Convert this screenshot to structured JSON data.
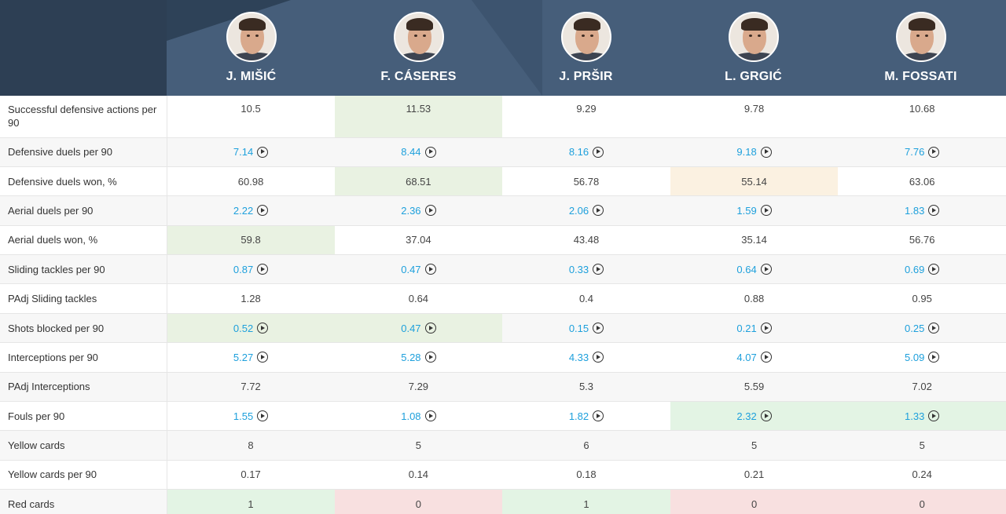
{
  "players": [
    {
      "name": "J. MIŠIĆ",
      "avatar": "player-photo"
    },
    {
      "name": "F. CÁSERES",
      "avatar": "player-photo"
    },
    {
      "name": "J. PRŠIR",
      "avatar": "player-photo"
    },
    {
      "name": "L. GRGIĆ",
      "avatar": "player-photo"
    },
    {
      "name": "M. FOSSATI",
      "avatar": "player-photo"
    }
  ],
  "rows": [
    {
      "label": "Successful defensive actions per 90",
      "link": false,
      "values": [
        "10.5",
        "11.53",
        "9.29",
        "9.78",
        "10.68"
      ],
      "highlight": [
        "",
        "green",
        "",
        "",
        ""
      ]
    },
    {
      "label": "Defensive duels per 90",
      "link": true,
      "values": [
        "7.14",
        "8.44",
        "8.16",
        "9.18",
        "7.76"
      ],
      "highlight": [
        "",
        "",
        "",
        "",
        ""
      ]
    },
    {
      "label": "Defensive duels won, %",
      "link": false,
      "values": [
        "60.98",
        "68.51",
        "56.78",
        "55.14",
        "63.06"
      ],
      "highlight": [
        "",
        "green",
        "",
        "orange",
        ""
      ]
    },
    {
      "label": "Aerial duels per 90",
      "link": true,
      "values": [
        "2.22",
        "2.36",
        "2.06",
        "1.59",
        "1.83"
      ],
      "highlight": [
        "",
        "",
        "",
        "",
        ""
      ]
    },
    {
      "label": "Aerial duels won, %",
      "link": false,
      "values": [
        "59.8",
        "37.04",
        "43.48",
        "35.14",
        "56.76"
      ],
      "highlight": [
        "green",
        "",
        "",
        "",
        ""
      ]
    },
    {
      "label": "Sliding tackles per 90",
      "link": true,
      "values": [
        "0.87",
        "0.47",
        "0.33",
        "0.64",
        "0.69"
      ],
      "highlight": [
        "",
        "",
        "",
        "",
        ""
      ]
    },
    {
      "label": "PAdj Sliding tackles",
      "link": false,
      "values": [
        "1.28",
        "0.64",
        "0.4",
        "0.88",
        "0.95"
      ],
      "highlight": [
        "",
        "",
        "",
        "",
        ""
      ]
    },
    {
      "label": "Shots blocked per 90",
      "link": true,
      "values": [
        "0.52",
        "0.47",
        "0.15",
        "0.21",
        "0.25"
      ],
      "highlight": [
        "green",
        "green",
        "",
        "",
        ""
      ]
    },
    {
      "label": "Interceptions per 90",
      "link": true,
      "values": [
        "5.27",
        "5.28",
        "4.33",
        "4.07",
        "5.09"
      ],
      "highlight": [
        "",
        "",
        "",
        "",
        ""
      ]
    },
    {
      "label": "PAdj Interceptions",
      "link": false,
      "values": [
        "7.72",
        "7.29",
        "5.3",
        "5.59",
        "7.02"
      ],
      "highlight": [
        "",
        "",
        "",
        "",
        ""
      ]
    },
    {
      "label": "Fouls per 90",
      "link": true,
      "values": [
        "1.55",
        "1.08",
        "1.82",
        "2.32",
        "1.33"
      ],
      "highlight": [
        "",
        "",
        "",
        "lgreen",
        "lgreen"
      ]
    },
    {
      "label": "Yellow cards",
      "link": false,
      "values": [
        "8",
        "5",
        "6",
        "5",
        "5"
      ],
      "highlight": [
        "",
        "",
        "",
        "",
        ""
      ]
    },
    {
      "label": "Yellow cards per 90",
      "link": false,
      "values": [
        "0.17",
        "0.14",
        "0.18",
        "0.21",
        "0.24"
      ],
      "highlight": [
        "",
        "",
        "",
        "",
        ""
      ]
    },
    {
      "label": "Red cards",
      "link": false,
      "values": [
        "1",
        "0",
        "1",
        "0",
        "0"
      ],
      "highlight": [
        "lgreen",
        "red",
        "lgreen",
        "red",
        "red"
      ]
    }
  ],
  "colors": {
    "header_bg": "#465e7a",
    "link": "#1ea0dc",
    "highlight_green": "#e9f2e2",
    "highlight_orange": "#fbf1e1",
    "highlight_red": "#f8e0e0"
  }
}
